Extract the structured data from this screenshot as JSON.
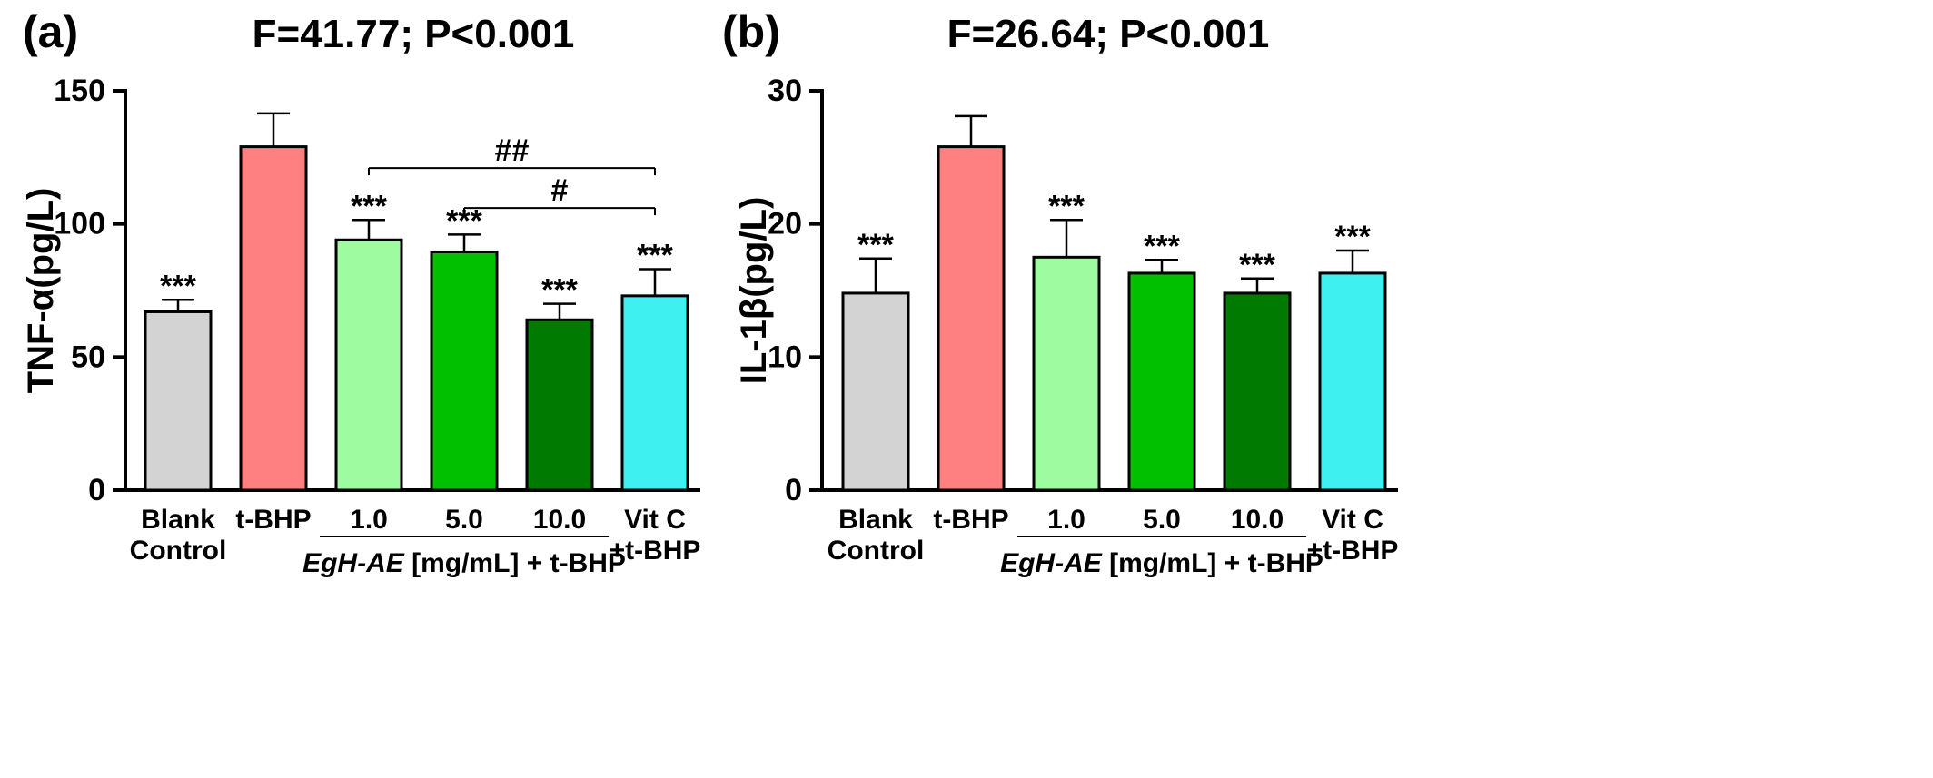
{
  "chart_data": [
    {
      "type": "bar",
      "panel_label": "(a)",
      "title": "F=41.77; P<0.001",
      "ylabel": "TNF-α(pg/L)",
      "ylim": [
        0,
        150
      ],
      "yticks": [
        0,
        50,
        100,
        150
      ],
      "categories": [
        [
          "Blank",
          "Control"
        ],
        [
          "t-BHP"
        ],
        [
          "1.0"
        ],
        [
          "5.0"
        ],
        [
          "10.0"
        ],
        [
          "Vit C",
          "+t-BHP"
        ]
      ],
      "group_label": {
        "italic": "EgH-AE",
        "rest": " [mg/mL] + t-BHP",
        "spans": [
          2,
          4
        ]
      },
      "values": [
        67,
        129,
        94,
        89.5,
        64,
        73
      ],
      "errors": [
        4.5,
        12.5,
        7.5,
        6.5,
        6,
        10
      ],
      "colors": [
        "#d3d3d3",
        "#ff8080",
        "#9ffb9f",
        "#00c000",
        "#007a00",
        "#3ff0f0"
      ],
      "significance": [
        "***",
        "",
        "***",
        "***",
        "***",
        "***"
      ],
      "brackets": [
        {
          "from": 2,
          "to": 5,
          "label": "##",
          "y": 121
        },
        {
          "from": 3,
          "to": 5,
          "label": "#",
          "y": 106
        }
      ]
    },
    {
      "type": "bar",
      "panel_label": "(b)",
      "title": "F=26.64; P<0.001",
      "ylabel": "IL-1β(pg/L)",
      "ylim": [
        0,
        30
      ],
      "yticks": [
        0,
        10,
        20,
        30
      ],
      "categories": [
        [
          "Blank",
          "Control"
        ],
        [
          "t-BHP"
        ],
        [
          "1.0"
        ],
        [
          "5.0"
        ],
        [
          "10.0"
        ],
        [
          "Vit C",
          "+t-BHP"
        ]
      ],
      "group_label": {
        "italic": "EgH-AE",
        "rest": " [mg/mL] + t-BHP",
        "spans": [
          2,
          4
        ]
      },
      "values": [
        14.8,
        25.8,
        17.5,
        16.3,
        14.8,
        16.3
      ],
      "errors": [
        2.6,
        2.3,
        2.8,
        1.0,
        1.1,
        1.7
      ],
      "colors": [
        "#d3d3d3",
        "#ff8080",
        "#9ffb9f",
        "#00c000",
        "#007a00",
        "#3ff0f0"
      ],
      "significance": [
        "***",
        "",
        "***",
        "***",
        "***",
        "***"
      ],
      "brackets": []
    }
  ]
}
